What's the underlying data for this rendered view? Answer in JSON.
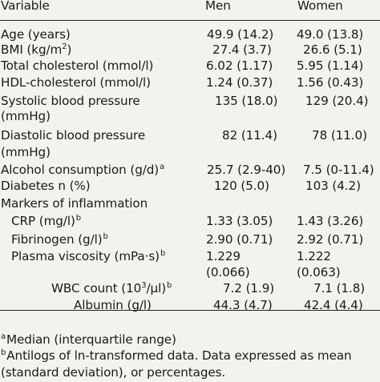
{
  "header": {
    "variable": "Variable",
    "men": "Men",
    "women": "Women"
  },
  "rows": {
    "age": {
      "label": "Age (years)",
      "men": "49.9 (14.2)",
      "women": "49.0 (13.8)"
    },
    "bmi": {
      "label_pre": "BMI (kg/m",
      "label_sup": "2",
      "label_post": ")",
      "men": "27.4 (3.7)",
      "women": "26.6 (5.1)"
    },
    "chol": {
      "label": "Total cholesterol (mmol/l)",
      "men": "6.02 (1.17)",
      "women": "5.95 (1.14)"
    },
    "hdl": {
      "label": "HDL-cholesterol (mmol/l)",
      "men": "1.24 (0.37)",
      "women": "1.56 (0.43)"
    },
    "sbp": {
      "label1": "Systolic blood pressure",
      "label2": "(mmHg)",
      "men": "135 (18.0)",
      "women": "129 (20.4)"
    },
    "dbp": {
      "label1": "Diastolic blood pressure",
      "label2": "(mmHg)",
      "men": "82 (11.4)",
      "women": "78 (11.0)"
    },
    "alcohol": {
      "label": "Alcohol consumption (g/d)",
      "label_sup": "a",
      "men": "25.7 (2.9-40)",
      "women": "7.5 (0-11.4)"
    },
    "diabetes": {
      "label": "Diabetes n (%)",
      "men": "120 (5.0)",
      "women": "103 (4.2)"
    },
    "markers": {
      "label": "Markers of inflammation"
    },
    "crp": {
      "label": "CRP (mg/l)",
      "label_sup": "b",
      "men": "1.33 (3.05)",
      "women": "1.43 (3.26)"
    },
    "fib": {
      "label": "Fibrinogen (g/l)",
      "label_sup": "b",
      "men": "2.90 (0.71)",
      "women": "2.92 (0.71)"
    },
    "visc": {
      "label": "Plasma viscosity (mPa·s)",
      "label_sup": "b",
      "men1": "1.229",
      "men2": "(0.066)",
      "women1": "1.222",
      "women2": "(0.063)"
    },
    "wbc": {
      "label_pre": "WBC count (10",
      "label_sup1": "3",
      "label_post": "/µl)",
      "label_sup2": "b",
      "men": "7.2 (1.9)",
      "women": "7.1 (1.8)"
    },
    "albumin": {
      "label": "Albumin (g/l)",
      "men": "44.3 (4.7)",
      "women": "42.4 (4.4)"
    }
  },
  "footnotes": {
    "a_mark": "a",
    "a_text": "Median (interquartile range)",
    "b_mark": "b",
    "b_text": "Antilogs of ln-transformed data. Data expressed as mean",
    "b_text2": "(standard deviation), or percentages."
  }
}
